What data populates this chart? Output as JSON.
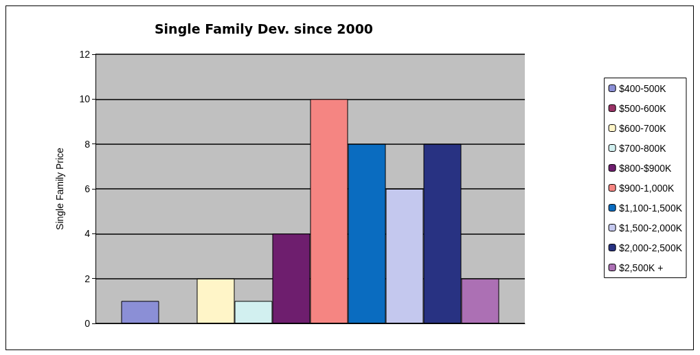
{
  "chart_data": {
    "type": "bar",
    "title": "Single Family Dev. since 2000",
    "ylabel": "Single Family Price",
    "categories": [
      null
    ],
    "series": [
      {
        "name": "$400-500K",
        "color": "#8b8fd6",
        "values": [
          1
        ]
      },
      {
        "name": "$500-600K",
        "color": "#993366",
        "values": [
          null
        ]
      },
      {
        "name": "$600-700K",
        "color": "#fff5c8",
        "values": [
          2
        ]
      },
      {
        "name": "$700-800K",
        "color": "#d2f0f0",
        "values": [
          1
        ]
      },
      {
        "name": "$800-$900K",
        "color": "#6e1e6e",
        "values": [
          4
        ]
      },
      {
        "name": "$900-1,000K",
        "color": "#f58582",
        "values": [
          10
        ]
      },
      {
        "name": "$1,100-1,500K",
        "color": "#0a6cc0",
        "values": [
          8
        ]
      },
      {
        "name": "$1,500-2,000K",
        "color": "#c4c8ee",
        "values": [
          6
        ]
      },
      {
        "name": "$2,000-2,500K",
        "color": "#283282",
        "values": [
          8
        ]
      },
      {
        "name": "$2,500K +",
        "color": "#ac70b4",
        "values": [
          2
        ]
      }
    ],
    "ylim": [
      0,
      12
    ],
    "yticks": [
      0,
      2,
      4,
      6,
      8,
      10,
      12
    ],
    "grid": "y",
    "legend": "right"
  }
}
